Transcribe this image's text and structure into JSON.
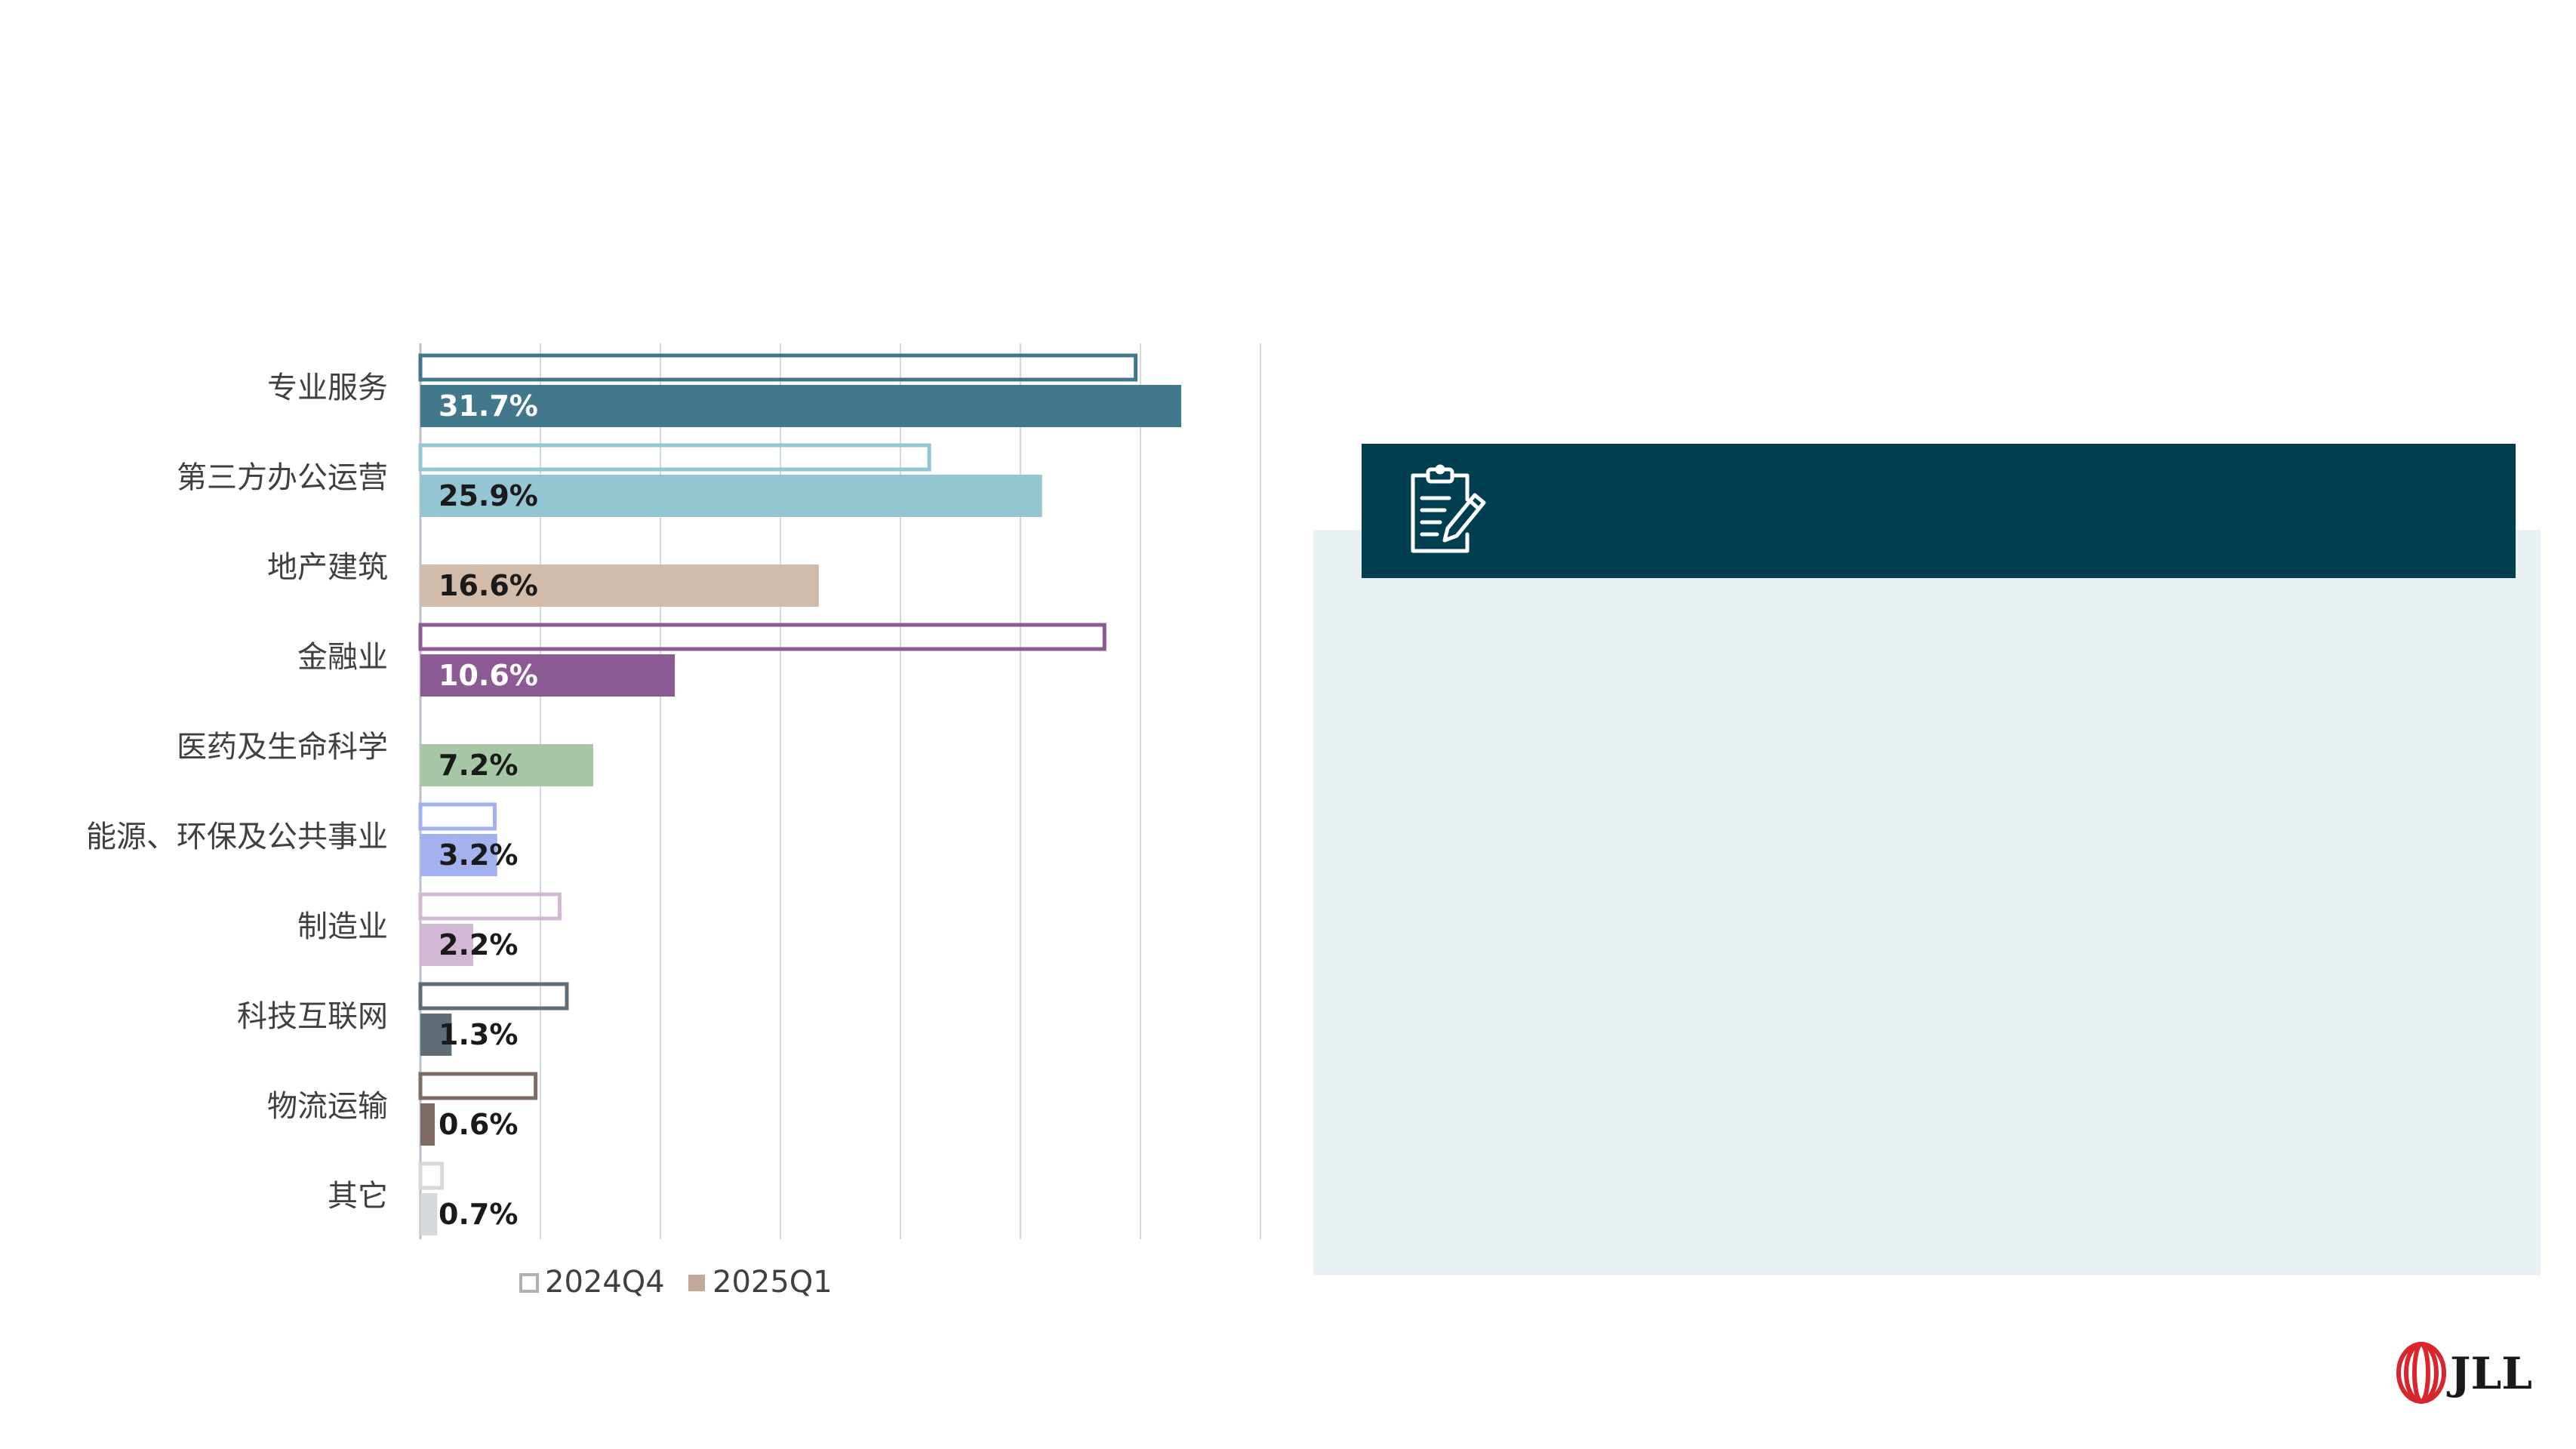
{
  "chart_data": {
    "type": "bar",
    "orientation": "horizontal",
    "categories": [
      "专业服务",
      "第三方办公运营",
      "地产建筑",
      "金融业",
      "医药及生命科学",
      "能源、环保及公共事业",
      "制造业",
      "科技互联网",
      "物流运输",
      "其它"
    ],
    "series": [
      {
        "name": "2024Q4",
        "style": "outline",
        "values": [
          29.8,
          21.2,
          null,
          28.5,
          null,
          3.1,
          5.8,
          6.1,
          4.8,
          0.9
        ]
      },
      {
        "name": "2025Q1",
        "style": "filled",
        "values": [
          31.7,
          25.9,
          16.6,
          10.6,
          7.2,
          3.2,
          2.2,
          1.3,
          0.6,
          0.7
        ]
      }
    ],
    "data_labels": [
      "31.7%",
      "25.9%",
      "16.6%",
      "10.6%",
      "7.2%",
      "3.2%",
      "2.2%",
      "1.3%",
      "0.6%",
      "0.7%"
    ],
    "category_colors": [
      "#41788c",
      "#93c5d3",
      "#d3bbaa",
      "#8c5a94",
      "#a5c7a5",
      "#a3b2ee",
      "#d3b8d6",
      "#5f6e76",
      "#7e6b63",
      "#d6d9dc"
    ],
    "label_colors": [
      "#ffffff",
      "#1a1a1a",
      "#1a1a1a",
      "#ffffff",
      "#1a1a1a",
      "#1a1a1a",
      "#1a1a1a",
      "#1a1a1a",
      "#1a1a1a",
      "#1a1a1a"
    ],
    "xlim": [
      0,
      35
    ],
    "grid": true,
    "legend_position": "bottom"
  },
  "icons": {
    "panel": "clipboard-edit-icon",
    "brand": "jll-logo"
  },
  "brand": {
    "logo_text": "JLL",
    "color": "#d9262e"
  },
  "colors": {
    "panel_header": "#003f50",
    "panel_background": "#eaf1f4"
  }
}
